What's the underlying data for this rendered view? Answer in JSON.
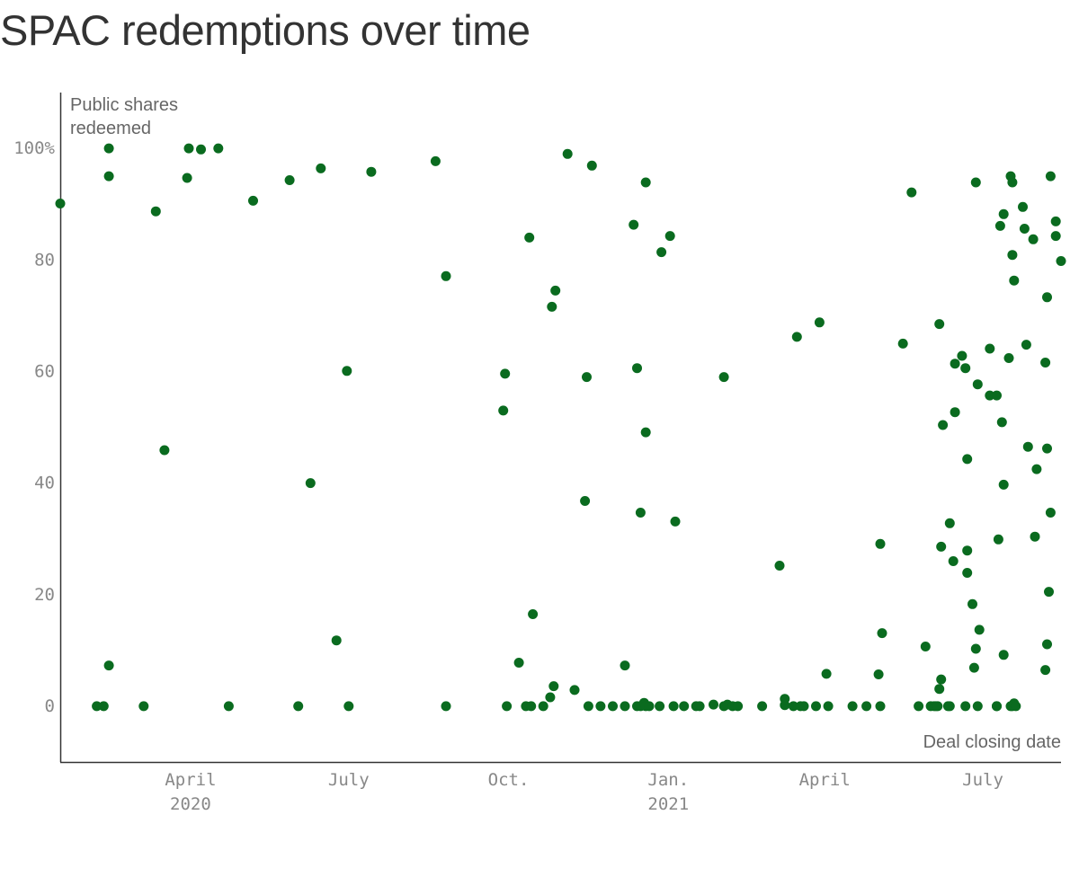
{
  "title": "SPAC redemptions over time",
  "chart_data": {
    "type": "scatter",
    "title": "SPAC redemptions over time",
    "ylabel": "Public shares redeemed",
    "xlabel": "Deal closing date",
    "xlim": [
      "2020-01-17",
      "2021-08-15"
    ],
    "ylim": [
      -10,
      110
    ],
    "y_ticks": [
      {
        "value": 100,
        "label": "100%"
      },
      {
        "value": 80,
        "label": "80"
      },
      {
        "value": 60,
        "label": "60"
      },
      {
        "value": 40,
        "label": "40"
      },
      {
        "value": 20,
        "label": "20"
      },
      {
        "value": 0,
        "label": "0"
      }
    ],
    "x_ticks": [
      {
        "date": "2020-04-01",
        "label": "April",
        "sublabel": "2020"
      },
      {
        "date": "2020-07-01",
        "label": "July",
        "sublabel": ""
      },
      {
        "date": "2020-10-01",
        "label": "Oct.",
        "sublabel": ""
      },
      {
        "date": "2021-01-01",
        "label": "Jan.",
        "sublabel": "2021"
      },
      {
        "date": "2021-04-01",
        "label": "April",
        "sublabel": ""
      },
      {
        "date": "2021-07-01",
        "label": "July",
        "sublabel": ""
      }
    ],
    "grid": false,
    "point_color": "#0a6b1f",
    "points": [
      [
        "2020-01-17",
        90.1
      ],
      [
        "2020-02-07",
        0
      ],
      [
        "2020-02-11",
        0
      ],
      [
        "2020-02-14",
        100
      ],
      [
        "2020-02-14",
        95
      ],
      [
        "2020-02-14",
        7.3
      ],
      [
        "2020-03-05",
        0
      ],
      [
        "2020-03-12",
        88.7
      ],
      [
        "2020-03-17",
        45.9
      ],
      [
        "2020-03-30",
        94.7
      ],
      [
        "2020-03-31",
        100
      ],
      [
        "2020-04-07",
        99.8
      ],
      [
        "2020-04-17",
        100
      ],
      [
        "2020-04-23",
        0
      ],
      [
        "2020-05-07",
        90.6
      ],
      [
        "2020-05-28",
        94.3
      ],
      [
        "2020-06-02",
        0
      ],
      [
        "2020-06-09",
        40
      ],
      [
        "2020-06-15",
        96.4
      ],
      [
        "2020-06-24",
        11.8
      ],
      [
        "2020-06-30",
        60.1
      ],
      [
        "2020-07-01",
        0
      ],
      [
        "2020-07-14",
        95.8
      ],
      [
        "2020-08-20",
        97.7
      ],
      [
        "2020-08-26",
        77.1
      ],
      [
        "2020-08-26",
        0
      ],
      [
        "2020-09-28",
        53
      ],
      [
        "2020-09-29",
        59.6
      ],
      [
        "2020-09-30",
        0
      ],
      [
        "2020-10-07",
        7.8
      ],
      [
        "2020-10-11",
        0
      ],
      [
        "2020-10-13",
        84
      ],
      [
        "2020-10-14",
        0
      ],
      [
        "2020-10-15",
        16.5
      ],
      [
        "2020-10-21",
        0
      ],
      [
        "2020-10-25",
        1.6
      ],
      [
        "2020-10-26",
        71.6
      ],
      [
        "2020-10-27",
        3.6
      ],
      [
        "2020-10-28",
        74.5
      ],
      [
        "2020-11-04",
        99
      ],
      [
        "2020-11-08",
        2.9
      ],
      [
        "2020-11-14",
        36.8
      ],
      [
        "2020-11-15",
        59
      ],
      [
        "2020-11-16",
        0
      ],
      [
        "2020-11-18",
        96.9
      ],
      [
        "2020-11-23",
        0
      ],
      [
        "2020-11-30",
        0
      ],
      [
        "2020-12-07",
        0
      ],
      [
        "2020-12-07",
        7.3
      ],
      [
        "2020-12-12",
        86.3
      ],
      [
        "2020-12-14",
        60.6
      ],
      [
        "2020-12-14",
        0
      ],
      [
        "2020-12-16",
        34.7
      ],
      [
        "2020-12-16",
        0
      ],
      [
        "2020-12-18",
        0.6
      ],
      [
        "2020-12-19",
        0
      ],
      [
        "2020-12-19",
        93.9
      ],
      [
        "2020-12-19",
        49.1
      ],
      [
        "2020-12-21",
        0
      ],
      [
        "2020-12-27",
        0
      ],
      [
        "2020-12-28",
        81.4
      ],
      [
        "2021-01-02",
        84.3
      ],
      [
        "2021-01-04",
        0
      ],
      [
        "2021-01-05",
        33.1
      ],
      [
        "2021-01-10",
        0
      ],
      [
        "2021-01-17",
        0
      ],
      [
        "2021-01-19",
        0
      ],
      [
        "2021-01-27",
        0.3
      ],
      [
        "2021-02-02",
        59
      ],
      [
        "2021-02-02",
        0
      ],
      [
        "2021-02-04",
        0.3
      ],
      [
        "2021-02-07",
        0
      ],
      [
        "2021-02-10",
        0
      ],
      [
        "2021-02-24",
        0
      ],
      [
        "2021-03-06",
        25.2
      ],
      [
        "2021-03-09",
        0.2
      ],
      [
        "2021-03-09",
        1.3
      ],
      [
        "2021-03-14",
        0
      ],
      [
        "2021-03-16",
        66.2
      ],
      [
        "2021-03-18",
        0
      ],
      [
        "2021-03-20",
        0
      ],
      [
        "2021-03-27",
        0
      ],
      [
        "2021-03-29",
        68.8
      ],
      [
        "2021-04-02",
        5.8
      ],
      [
        "2021-04-03",
        0
      ],
      [
        "2021-04-17",
        0
      ],
      [
        "2021-04-25",
        0
      ],
      [
        "2021-05-02",
        5.7
      ],
      [
        "2021-05-03",
        29.1
      ],
      [
        "2021-05-03",
        0
      ],
      [
        "2021-05-04",
        13.1
      ],
      [
        "2021-05-16",
        65
      ],
      [
        "2021-05-21",
        92.1
      ],
      [
        "2021-05-25",
        0
      ],
      [
        "2021-05-29",
        10.7
      ],
      [
        "2021-06-01",
        0
      ],
      [
        "2021-06-03",
        0
      ],
      [
        "2021-06-04",
        0
      ],
      [
        "2021-06-06",
        3.1
      ],
      [
        "2021-06-06",
        68.5
      ],
      [
        "2021-06-07",
        28.6
      ],
      [
        "2021-06-07",
        4.8
      ],
      [
        "2021-06-05",
        0
      ],
      [
        "2021-06-08",
        50.4
      ],
      [
        "2021-06-11",
        0
      ],
      [
        "2021-06-12",
        32.8
      ],
      [
        "2021-06-12",
        0
      ],
      [
        "2021-06-14",
        26
      ],
      [
        "2021-06-15",
        61.4
      ],
      [
        "2021-06-15",
        52.7
      ],
      [
        "2021-06-19",
        62.8
      ],
      [
        "2021-06-21",
        60.6
      ],
      [
        "2021-06-21",
        0
      ],
      [
        "2021-06-22",
        27.9
      ],
      [
        "2021-06-22",
        44.3
      ],
      [
        "2021-06-22",
        23.9
      ],
      [
        "2021-06-25",
        18.3
      ],
      [
        "2021-06-26",
        6.9
      ],
      [
        "2021-06-27",
        93.9
      ],
      [
        "2021-06-27",
        10.3
      ],
      [
        "2021-06-28",
        0
      ],
      [
        "2021-06-28",
        57.7
      ],
      [
        "2021-06-29",
        13.7
      ],
      [
        "2021-07-05",
        64.1
      ],
      [
        "2021-07-05",
        55.7
      ],
      [
        "2021-07-09",
        0
      ],
      [
        "2021-07-09",
        55.7
      ],
      [
        "2021-07-09",
        0
      ],
      [
        "2021-07-10",
        29.9
      ],
      [
        "2021-07-11",
        86.1
      ],
      [
        "2021-07-12",
        50.9
      ],
      [
        "2021-07-13",
        39.7
      ],
      [
        "2021-07-13",
        9.2
      ],
      [
        "2021-07-13",
        88.2
      ],
      [
        "2021-07-16",
        62.4
      ],
      [
        "2021-07-17",
        95
      ],
      [
        "2021-07-17",
        0
      ],
      [
        "2021-07-18",
        93.9
      ],
      [
        "2021-07-18",
        80.9
      ],
      [
        "2021-07-18",
        0
      ],
      [
        "2021-07-19",
        76.3
      ],
      [
        "2021-07-19",
        0.5
      ],
      [
        "2021-07-20",
        0
      ],
      [
        "2021-07-24",
        89.5
      ],
      [
        "2021-07-25",
        85.6
      ],
      [
        "2021-07-26",
        64.8
      ],
      [
        "2021-07-27",
        46.5
      ],
      [
        "2021-07-30",
        83.7
      ],
      [
        "2021-07-31",
        30.4
      ],
      [
        "2021-08-01",
        42.5
      ],
      [
        "2021-08-06",
        6.5
      ],
      [
        "2021-08-06",
        61.6
      ],
      [
        "2021-08-07",
        73.3
      ],
      [
        "2021-08-07",
        46.2
      ],
      [
        "2021-08-07",
        11.1
      ],
      [
        "2021-08-08",
        20.5
      ],
      [
        "2021-08-09",
        34.7
      ],
      [
        "2021-08-09",
        95
      ],
      [
        "2021-08-12",
        86.9
      ],
      [
        "2021-08-12",
        84.3
      ],
      [
        "2021-08-15",
        79.8
      ]
    ]
  }
}
